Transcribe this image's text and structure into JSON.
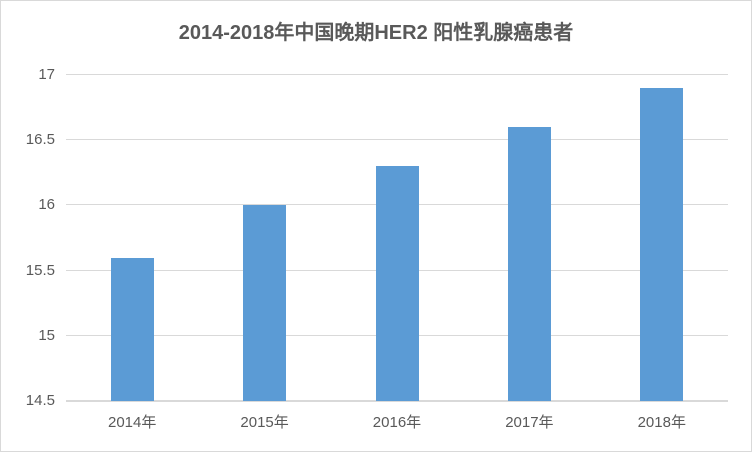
{
  "chart_data": {
    "type": "bar",
    "title": "2014-2018年中国晚期HER2 阳性乳腺癌患者",
    "categories": [
      "2014年",
      "2015年",
      "2016年",
      "2017年",
      "2018年"
    ],
    "values": [
      15.6,
      16.0,
      16.3,
      16.6,
      16.9
    ],
    "xlabel": "",
    "ylabel": "",
    "ylim": [
      14.5,
      17
    ],
    "yticks": [
      14.5,
      15,
      15.5,
      16,
      16.5,
      17
    ],
    "grid": true,
    "legend_position": "none",
    "colors": {
      "bar_fill": "#5b9bd5",
      "gridline": "#d9d9d9",
      "axis_line": "#d9d9d9",
      "tick_text": "#595959",
      "title_text": "#595959",
      "background": "#ffffff",
      "frame_border": "#d9d9d9"
    }
  }
}
